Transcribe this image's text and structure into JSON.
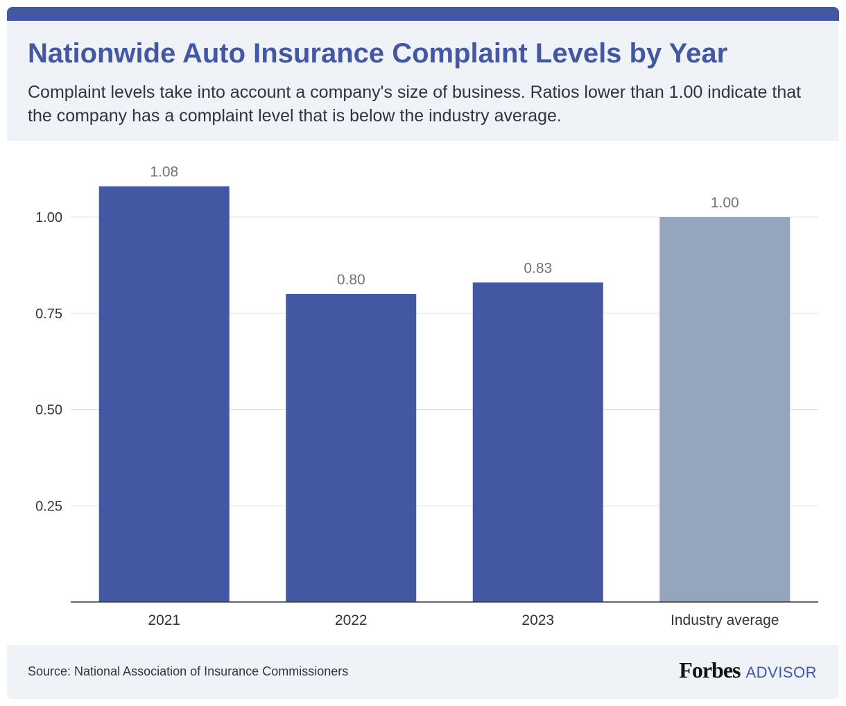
{
  "chart_data": {
    "type": "bar",
    "title": "Nationwide Auto Insurance Complaint Levels by Year",
    "subtitle": "Complaint levels take into account a company's size of business. Ratios lower than 1.00 indicate that the company has a complaint level that is below the industry average.",
    "categories": [
      "2021",
      "2022",
      "2023",
      "Industry average"
    ],
    "values": [
      1.08,
      0.8,
      0.83,
      1.0
    ],
    "value_labels": [
      "1.08",
      "0.80",
      "0.83",
      "1.00"
    ],
    "yticks": [
      0.25,
      0.5,
      0.75,
      1.0
    ],
    "ytick_labels": [
      "0.25",
      "0.50",
      "0.75",
      "1.00"
    ],
    "ylim": [
      0,
      1.1
    ],
    "xlabel": "",
    "ylabel": "",
    "grid": true,
    "legend": "none",
    "bar_colors": [
      "#4457a3",
      "#4457a3",
      "#4457a3",
      "#95a5bb"
    ]
  },
  "footer": {
    "source": "Source: National Association of Insurance Commissioners",
    "logo_forbes": "Forbes",
    "logo_advisor": "ADVISOR"
  },
  "colors": {
    "accent": "#4457a3",
    "header_bg": "#eff3f8",
    "gray_bar": "#95a5bb"
  }
}
